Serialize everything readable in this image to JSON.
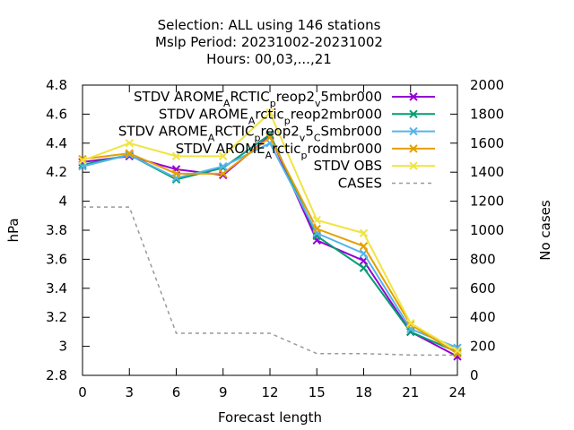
{
  "chart_data": {
    "type": "line",
    "title": [
      "Selection: ALL using   146 stations",
      "Mslp    Period: 20231002-20231002",
      "Hours:  00,03,...,21"
    ],
    "xlabel": "Forecast length",
    "ylabel": "hPa",
    "y2label": "No cases",
    "x": [
      0,
      3,
      6,
      9,
      12,
      15,
      18,
      21,
      24
    ],
    "xlim": [
      0,
      24
    ],
    "ylim": [
      2.8,
      4.8
    ],
    "y2lim": [
      0,
      2000
    ],
    "yticks": [
      "2.8",
      "3",
      "3.2",
      "3.4",
      "3.6",
      "3.8",
      "4",
      "4.2",
      "4.4",
      "4.6",
      "4.8"
    ],
    "y2ticks": [
      "0",
      "200",
      "400",
      "600",
      "800",
      "1000",
      "1200",
      "1400",
      "1600",
      "1800",
      "2000"
    ],
    "xticks": [
      "0",
      "3",
      "6",
      "9",
      "12",
      "15",
      "18",
      "21",
      "24"
    ],
    "grid": false,
    "legend_position": "top-right",
    "series": [
      {
        "name": "STDV AROME_ARCTIC_preop2_v5mbr000",
        "label_parts": [
          [
            "STDV AROME",
            ""
          ],
          [
            "A",
            "sub"
          ],
          [
            "RCTIC",
            ""
          ],
          [
            "p",
            "sub"
          ],
          [
            "reop2",
            ""
          ],
          [
            "v",
            "sub"
          ],
          [
            "5mbr000",
            ""
          ]
        ],
        "color": "#9400d3",
        "marker": "x",
        "axis": "left",
        "values": [
          4.27,
          4.31,
          4.22,
          4.18,
          4.45,
          3.73,
          3.59,
          3.1,
          2.93
        ]
      },
      {
        "name": "STDV AROME_Arctic_preop2mbr000",
        "label_parts": [
          [
            "STDV AROME",
            ""
          ],
          [
            "A",
            "sub"
          ],
          [
            "rctic",
            ""
          ],
          [
            "p",
            "sub"
          ],
          [
            "reop2mbr000",
            ""
          ]
        ],
        "color": "#009e73",
        "marker": "x",
        "axis": "left",
        "values": [
          4.25,
          4.32,
          4.15,
          4.23,
          4.46,
          3.76,
          3.54,
          3.1,
          2.96
        ]
      },
      {
        "name": "STDV AROME_ARCTIC_preop2_v5_CSmbr000",
        "label_parts": [
          [
            "STDV AROME",
            ""
          ],
          [
            "A",
            "sub"
          ],
          [
            "RCTIC",
            ""
          ],
          [
            "p",
            "sub"
          ],
          [
            "reop2",
            ""
          ],
          [
            "v",
            "sub"
          ],
          [
            "5",
            ""
          ],
          [
            "C",
            "sub"
          ],
          [
            "Smbr000",
            ""
          ]
        ],
        "color": "#56b4e9",
        "marker": "x",
        "axis": "left",
        "values": [
          4.24,
          4.32,
          4.16,
          4.24,
          4.4,
          3.78,
          3.64,
          3.12,
          2.99
        ]
      },
      {
        "name": "STDV AROME_Arctic_prodmbr000",
        "label_parts": [
          [
            "STDV AROME",
            ""
          ],
          [
            "A",
            "sub"
          ],
          [
            "rctic",
            ""
          ],
          [
            "p",
            "sub"
          ],
          [
            "rodmbr000",
            ""
          ]
        ],
        "color": "#e69f00",
        "marker": "x",
        "axis": "left",
        "values": [
          4.29,
          4.33,
          4.19,
          4.19,
          4.44,
          3.81,
          3.69,
          3.15,
          2.95
        ]
      },
      {
        "name": "STDV OBS",
        "label_parts": [
          [
            "STDV OBS",
            ""
          ]
        ],
        "color": "#f0e442",
        "marker": "x",
        "axis": "left",
        "values": [
          4.28,
          4.4,
          4.31,
          4.31,
          4.61,
          3.87,
          3.78,
          3.16,
          2.97
        ]
      },
      {
        "name": "CASES",
        "label_parts": [
          [
            "CASES",
            ""
          ]
        ],
        "color": "#999999",
        "marker": "none",
        "dash": true,
        "axis": "right",
        "values": [
          1160,
          1160,
          290,
          290,
          290,
          150,
          150,
          140,
          140
        ]
      }
    ]
  }
}
